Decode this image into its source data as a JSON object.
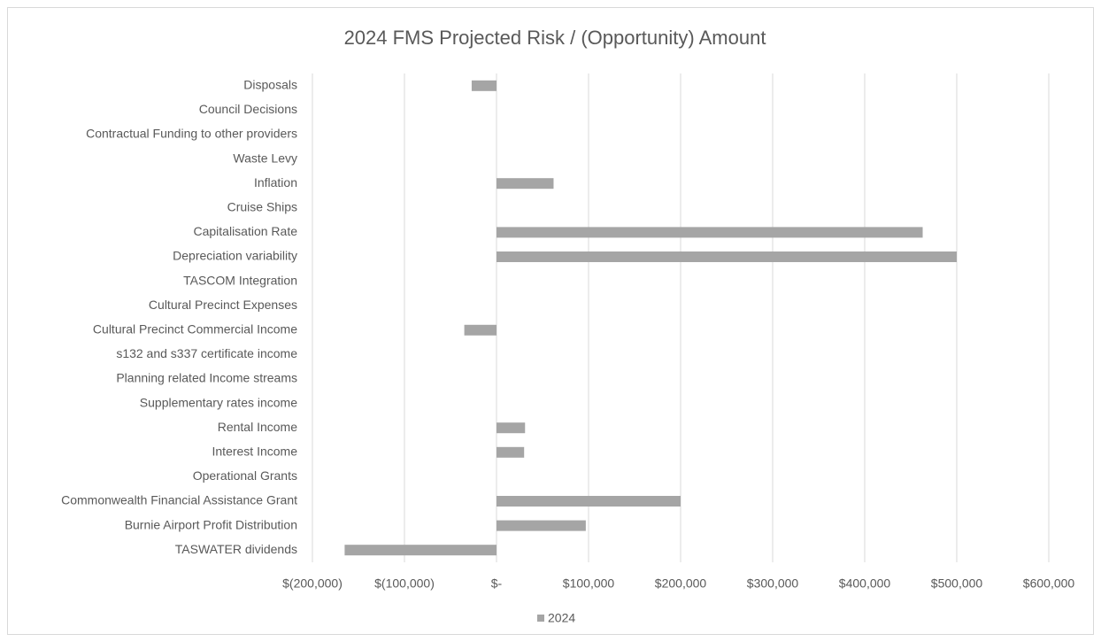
{
  "chart_data": {
    "type": "hbar",
    "title": "2024 FMS Projected Risk / (Opportunity) Amount",
    "categories": [
      "Disposals",
      "Council Decisions",
      "Contractual Funding to other providers",
      "Waste Levy",
      "Inflation",
      "Cruise Ships",
      "Capitalisation Rate",
      "Depreciation variability",
      "TASCOM Integration",
      "Cultural Precinct Expenses",
      "Cultural Precinct Commercial Income",
      "s132 and s337 certificate income",
      "Planning related Income streams",
      "Supplementary rates income",
      "Rental Income",
      "Interest Income",
      "Operational Grants",
      "Commonwealth Financial Assistance Grant",
      "Burnie Airport Profit Distribution",
      "TASWATER dividends"
    ],
    "series": [
      {
        "name": "2024",
        "color": "#a5a5a5",
        "values": [
          -27000,
          0,
          0,
          0,
          62000,
          0,
          463000,
          500000,
          0,
          0,
          -35000,
          0,
          0,
          0,
          31000,
          30000,
          0,
          200000,
          97000,
          -165000
        ]
      }
    ],
    "xlim": [
      -200000,
      600000
    ],
    "xticks": [
      {
        "value": -200000,
        "label": "$(200,000)"
      },
      {
        "value": -100000,
        "label": "$(100,000)"
      },
      {
        "value": 0,
        "label": "$-"
      },
      {
        "value": 100000,
        "label": "$100,000"
      },
      {
        "value": 200000,
        "label": "$200,000"
      },
      {
        "value": 300000,
        "label": "$300,000"
      },
      {
        "value": 400000,
        "label": "$400,000"
      },
      {
        "value": 500000,
        "label": "$500,000"
      },
      {
        "value": 600000,
        "label": "$600,000"
      }
    ],
    "grid": true,
    "legend": "bottom"
  }
}
